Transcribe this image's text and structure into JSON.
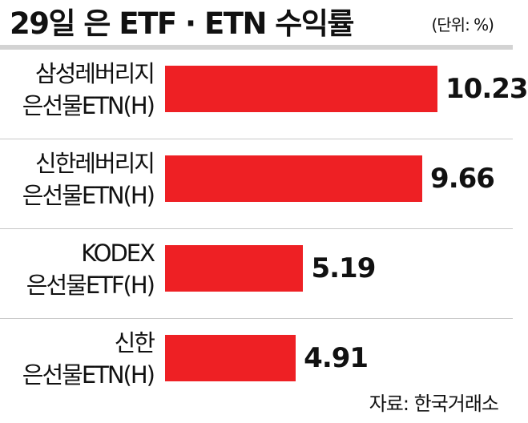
{
  "header": {
    "title": "29일 은 ETF · ETN 수익률",
    "unit": "(단위: %)"
  },
  "colors": {
    "bar": "#ee2024",
    "text": "#111111",
    "header_rule": "#d3d3d3"
  },
  "chart_data": {
    "type": "bar",
    "orientation": "horizontal",
    "title": "29일 은 ETF · ETN 수익률",
    "unit": "(단위: %)",
    "categories": [
      [
        "삼성레버리지",
        "은선물ETN(H)"
      ],
      [
        "신한레버리지",
        "은선물ETN(H)"
      ],
      [
        "KODEX",
        "은선물ETF(H)"
      ],
      [
        "신한",
        "은선물ETN(H)"
      ]
    ],
    "values": [
      10.23,
      9.66,
      5.19,
      4.91
    ],
    "value_labels": [
      "10.23",
      "9.66",
      "5.19",
      "4.91"
    ],
    "xlim": [
      0,
      10.23
    ],
    "grid": false,
    "legend": "none"
  },
  "footer": {
    "source": "자료: 한국거래소"
  }
}
